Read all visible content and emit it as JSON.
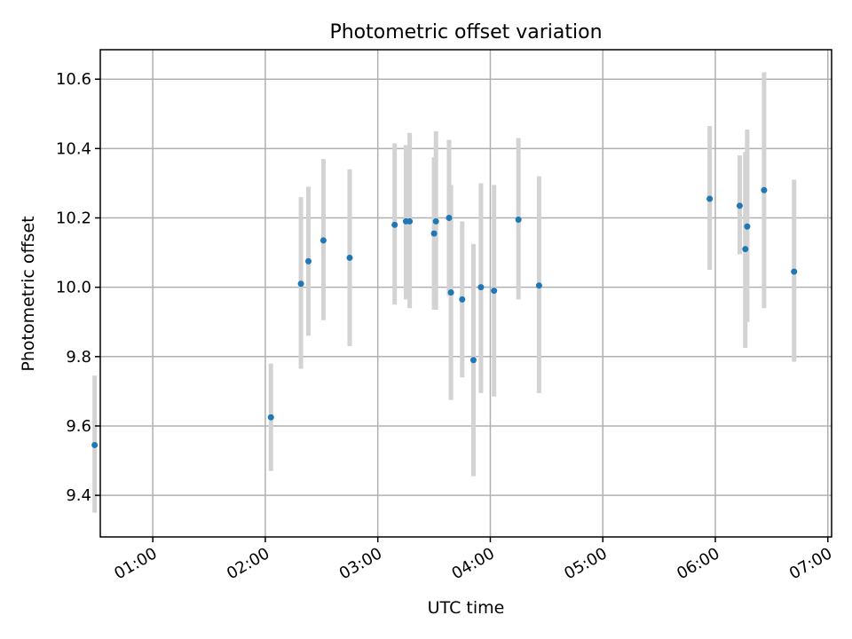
{
  "chart_data": {
    "type": "scatter",
    "title": "Photometric offset variation",
    "xlabel": "UTC time",
    "ylabel": "Photometric offset",
    "grid": true,
    "xlim": [
      "00:32",
      "07:02"
    ],
    "ylim": [
      9.28,
      10.685
    ],
    "x_ticks": [
      "01:00",
      "02:00",
      "03:00",
      "04:00",
      "05:00",
      "06:00",
      "07:00"
    ],
    "y_ticks": [
      "9.4",
      "9.6",
      "9.8",
      "10.0",
      "10.2",
      "10.4",
      "10.6"
    ],
    "colors": {
      "point": "#1f77b4",
      "errorbar": "#d3d3d3",
      "grid": "#b0b0b0"
    },
    "points": [
      {
        "t": "00:29",
        "y": 9.545,
        "err_low": 9.35,
        "err_high": 9.745
      },
      {
        "t": "02:03",
        "y": 9.625,
        "err_low": 9.47,
        "err_high": 9.78
      },
      {
        "t": "02:19",
        "y": 10.01,
        "err_low": 9.765,
        "err_high": 10.26
      },
      {
        "t": "02:23",
        "y": 10.075,
        "err_low": 9.86,
        "err_high": 10.29
      },
      {
        "t": "02:31",
        "y": 10.135,
        "err_low": 9.905,
        "err_high": 10.37
      },
      {
        "t": "02:45",
        "y": 10.085,
        "err_low": 9.83,
        "err_high": 10.34
      },
      {
        "t": "03:09",
        "y": 10.18,
        "err_low": 9.95,
        "err_high": 10.415
      },
      {
        "t": "03:15",
        "y": 10.19,
        "err_low": 9.965,
        "err_high": 10.41
      },
      {
        "t": "03:17",
        "y": 10.19,
        "err_low": 9.94,
        "err_high": 10.445
      },
      {
        "t": "03:30",
        "y": 10.155,
        "err_low": 9.935,
        "err_high": 10.375
      },
      {
        "t": "03:31",
        "y": 10.19,
        "err_low": 9.935,
        "err_high": 10.45
      },
      {
        "t": "03:38",
        "y": 10.2,
        "err_low": 9.975,
        "err_high": 10.425
      },
      {
        "t": "03:39",
        "y": 9.985,
        "err_low": 9.675,
        "err_high": 10.295
      },
      {
        "t": "03:45",
        "y": 9.965,
        "err_low": 9.74,
        "err_high": 10.19
      },
      {
        "t": "03:51",
        "y": 9.79,
        "err_low": 9.455,
        "err_high": 10.125
      },
      {
        "t": "03:55",
        "y": 10.0,
        "err_low": 9.695,
        "err_high": 10.3
      },
      {
        "t": "04:02",
        "y": 9.99,
        "err_low": 9.685,
        "err_high": 10.295
      },
      {
        "t": "04:15",
        "y": 10.195,
        "err_low": 9.965,
        "err_high": 10.43
      },
      {
        "t": "04:26",
        "y": 10.005,
        "err_low": 9.695,
        "err_high": 10.32
      },
      {
        "t": "05:57",
        "y": 10.255,
        "err_low": 10.05,
        "err_high": 10.465
      },
      {
        "t": "06:13",
        "y": 10.235,
        "err_low": 10.095,
        "err_high": 10.38
      },
      {
        "t": "06:16",
        "y": 10.11,
        "err_low": 9.825,
        "err_high": 10.39
      },
      {
        "t": "06:17",
        "y": 10.175,
        "err_low": 9.9,
        "err_high": 10.455
      },
      {
        "t": "06:26",
        "y": 10.28,
        "err_low": 9.94,
        "err_high": 10.62
      },
      {
        "t": "06:42",
        "y": 10.045,
        "err_low": 9.785,
        "err_high": 10.31
      }
    ]
  }
}
